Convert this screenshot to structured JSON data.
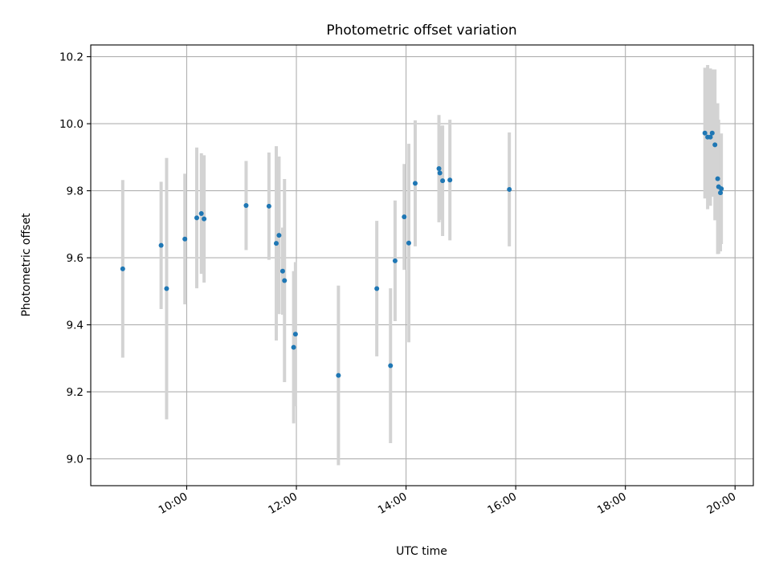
{
  "chart_data": {
    "type": "scatter",
    "title": "Photometric offset variation",
    "xlabel": "UTC time",
    "ylabel": "Photometric offset",
    "xlim": [
      "08:15",
      "20:20"
    ],
    "ylim": [
      8.92,
      10.235
    ],
    "xticks": [
      "10:00",
      "12:00",
      "14:00",
      "16:00",
      "18:00",
      "20:00"
    ],
    "yticks": [
      "9.0",
      "9.2",
      "9.4",
      "9.6",
      "9.8",
      "10.0",
      "10.2"
    ],
    "grid": true,
    "colors": {
      "points": "#1f77b4",
      "errorbars": "#d3d3d3",
      "grid": "#b0b0b0"
    },
    "points": [
      {
        "x": "08:50",
        "y": 9.567,
        "yerr": 0.265
      },
      {
        "x": "09:32",
        "y": 9.637,
        "yerr": 0.19
      },
      {
        "x": "09:38",
        "y": 9.508,
        "yerr": 0.39
      },
      {
        "x": "09:58",
        "y": 9.656,
        "yerr": 0.195
      },
      {
        "x": "10:11",
        "y": 9.719,
        "yerr": 0.21
      },
      {
        "x": "10:16",
        "y": 9.732,
        "yerr": 0.18
      },
      {
        "x": "10:19",
        "y": 9.716,
        "yerr": 0.19
      },
      {
        "x": "11:05",
        "y": 9.756,
        "yerr": 0.133
      },
      {
        "x": "11:30",
        "y": 9.754,
        "yerr": 0.16
      },
      {
        "x": "11:38",
        "y": 9.643,
        "yerr": 0.29
      },
      {
        "x": "11:41",
        "y": 9.667,
        "yerr": 0.235
      },
      {
        "x": "11:45",
        "y": 9.56,
        "yerr": 0.13
      },
      {
        "x": "11:47",
        "y": 9.532,
        "yerr": 0.303
      },
      {
        "x": "11:57",
        "y": 9.333,
        "yerr": 0.227
      },
      {
        "x": "11:59",
        "y": 9.372,
        "yerr": 0.215
      },
      {
        "x": "12:46",
        "y": 9.249,
        "yerr": 0.268
      },
      {
        "x": "13:28",
        "y": 9.508,
        "yerr": 0.202
      },
      {
        "x": "13:43",
        "y": 9.278,
        "yerr": 0.231
      },
      {
        "x": "13:48",
        "y": 9.591,
        "yerr": 0.18
      },
      {
        "x": "13:58",
        "y": 9.722,
        "yerr": 0.158
      },
      {
        "x": "14:03",
        "y": 9.644,
        "yerr": 0.296
      },
      {
        "x": "14:10",
        "y": 9.822,
        "yerr": 0.188
      },
      {
        "x": "14:36",
        "y": 9.866,
        "yerr": 0.16
      },
      {
        "x": "14:37",
        "y": 9.853,
        "yerr": 0.14
      },
      {
        "x": "14:40",
        "y": 9.83,
        "yerr": 0.165
      },
      {
        "x": "14:48",
        "y": 9.832,
        "yerr": 0.18
      },
      {
        "x": "15:53",
        "y": 9.804,
        "yerr": 0.17
      },
      {
        "x": "19:27",
        "y": 9.972,
        "yerr": 0.195
      },
      {
        "x": "19:30",
        "y": 9.96,
        "yerr": 0.215
      },
      {
        "x": "19:33",
        "y": 9.96,
        "yerr": 0.205
      },
      {
        "x": "19:35",
        "y": 9.972,
        "yerr": 0.19
      },
      {
        "x": "19:38",
        "y": 9.937,
        "yerr": 0.225
      },
      {
        "x": "19:41",
        "y": 9.836,
        "yerr": 0.225
      },
      {
        "x": "19:42",
        "y": 9.812,
        "yerr": 0.2
      },
      {
        "x": "19:44",
        "y": 9.794,
        "yerr": 0.175
      },
      {
        "x": "19:45",
        "y": 9.806,
        "yerr": 0.165
      }
    ]
  }
}
